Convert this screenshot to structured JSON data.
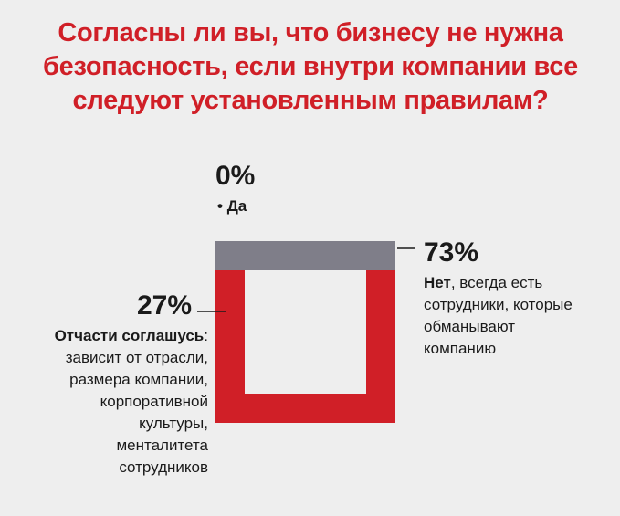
{
  "title_lines": [
    "Согласны ли вы, что бизнесу не нужна",
    "безопасность, если внутри компании все",
    "следуют установленным правилам?"
  ],
  "colors": {
    "accent": "#d01f27",
    "grey": "#7f7e89",
    "background": "#eeeeee",
    "text": "#1a1a1a"
  },
  "chart_data": {
    "type": "pie",
    "title": "Согласны ли вы, что бизнесу не нужна безопасность, если внутри компании все следуют установленным правилам?",
    "slices": [
      {
        "value": 0,
        "pct_label": "0%",
        "bold": "Да",
        "rest": [],
        "color": "#d01f27"
      },
      {
        "value": 73,
        "pct_label": "73%",
        "bold": "Нет",
        "rest": [
          ", всегда есть",
          "сотрудники, которые",
          "обманывают",
          "компанию"
        ],
        "color": "#d01f27"
      },
      {
        "value": 27,
        "pct_label": "27%",
        "bold": "Отчасти соглашусь",
        "rest": [
          ":",
          "зависит от отрасли,",
          "размера компании,",
          "корпоративной",
          "культуры,",
          "менталитета",
          "сотрудников"
        ],
        "color": "#7f7e89"
      }
    ]
  }
}
